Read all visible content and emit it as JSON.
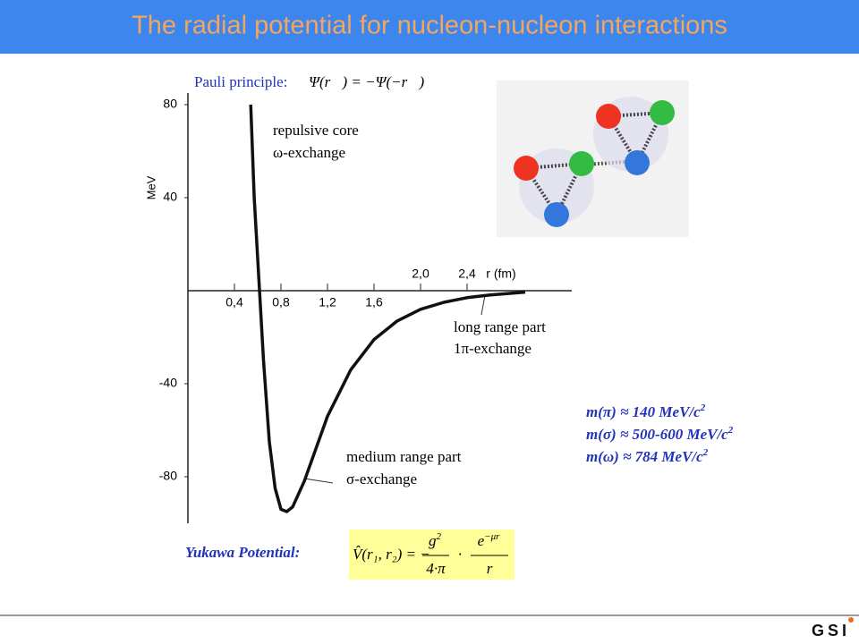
{
  "title": "The radial potential for nucleon-nucleon interactions",
  "pauli": {
    "label": "Pauli principle:",
    "formula": "Ψ(r⃗) = −Ψ(−r⃗)"
  },
  "annotations": [
    "repulsive core",
    "ω-exchange",
    "long range part",
    "1π-exchange",
    "medium range part",
    "σ-exchange"
  ],
  "masses": [
    {
      "text": "m(π) ≈ 140 MeV/c",
      "exp": "2"
    },
    {
      "text": "m(σ) ≈ 500-600 MeV/c",
      "exp": "2"
    },
    {
      "text": "m(ω) ≈ 784 MeV/c",
      "exp": "2"
    }
  ],
  "yukawa": {
    "label": "Yukawa Potential:",
    "lhs": "V̂(r₁, r₂) = −",
    "num1": "g",
    "num1_exp": "2",
    "den1": "4·π",
    "dot": "·",
    "num2": "e",
    "num2_exp": "−μr",
    "den2": "r"
  },
  "logo": "GSI",
  "chart_data": {
    "type": "line",
    "y_label": "MeV",
    "x_label": "r (fm)",
    "xlim": [
      0,
      3.3
    ],
    "ylim": [
      -100,
      85
    ],
    "xticks": [
      {
        "value": 0.4,
        "label": "0,4"
      },
      {
        "value": 0.8,
        "label": "0,8"
      },
      {
        "value": 1.2,
        "label": "1,2"
      },
      {
        "value": 1.6,
        "label": "1,6"
      },
      {
        "value": 2.0,
        "label": "2,0"
      },
      {
        "value": 2.4,
        "label": "2,4"
      }
    ],
    "yticks": [
      80,
      40,
      -40,
      -80
    ],
    "color": "#111111",
    "series": [
      {
        "x": [
          0.54,
          0.57,
          0.61,
          0.65,
          0.7,
          0.75,
          0.8,
          0.85,
          0.9,
          1.0,
          1.1,
          1.2,
          1.4,
          1.6,
          1.8,
          2.0,
          2.2,
          2.4,
          2.6,
          2.9
        ],
        "values": [
          80,
          40,
          5,
          -30,
          -65,
          -85,
          -94,
          -95,
          -93,
          -82,
          -68,
          -54,
          -34,
          -21,
          -13,
          -8,
          -5,
          -3,
          -1.8,
          -0.6
        ]
      }
    ]
  }
}
